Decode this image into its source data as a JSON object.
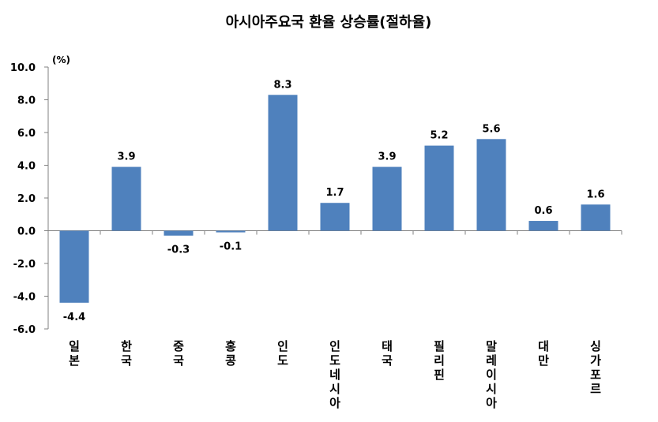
{
  "chart_data": {
    "type": "bar",
    "title": "아시아주요국 환율 상승률(절하율)",
    "unit_label": "(%)",
    "categories": [
      "일본",
      "한국",
      "중국",
      "홍콩",
      "인도",
      "인도네시아",
      "태국",
      "필리핀",
      "말레이시아",
      "대만",
      "싱가포르"
    ],
    "series": [
      {
        "values": [
          -4.4,
          3.9,
          -0.3,
          -0.1,
          8.3,
          1.7,
          3.9,
          5.2,
          5.6,
          0.6,
          1.6
        ]
      }
    ],
    "data_labels": [
      "-4.4",
      "3.9",
      "-0.3",
      "-0.1",
      "8.3",
      "1.7",
      "3.9",
      "5.2",
      "5.6",
      "0.6",
      "1.6"
    ],
    "ylim": [
      -6.0,
      10.0
    ],
    "y_ticks": [
      "10.0",
      "8.0",
      "6.0",
      "4.0",
      "2.0",
      "0.0",
      "-2.0",
      "-4.0",
      "-6.0"
    ],
    "bar_color": "#4f81bd",
    "grid": false,
    "legend": "none"
  }
}
